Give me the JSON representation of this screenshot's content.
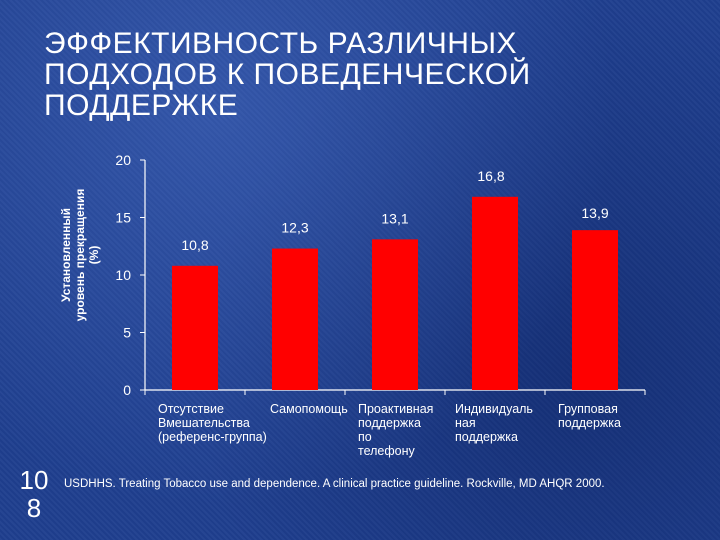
{
  "title": "ЭФФЕКТИВНОСТЬ РАЗЛИЧНЫХ\nПОДХОДОВ К ПОВЕДЕНЧЕСКОЙ\nПОДДЕРЖКЕ",
  "page_number": "108",
  "source": "USDHHS. Treating Tobacco use and dependence. A clinical practice guideline. Rockville, MD AHQR 2000.",
  "colors": {
    "bar": "#ff0000",
    "axis": "#ffffff",
    "text": "#ffffff",
    "background": "#1f3f8f"
  },
  "chart_data": {
    "type": "bar",
    "title": "",
    "xlabel": "",
    "ylabel": "Установленный\nуровень прекращения\n(%)",
    "categories": [
      "Отсутствие\nВмешательства\n(референс-группа)",
      "Самопомощь",
      "Проактивная\nподдержка\nпо\nтелефону",
      "Индивидуаль\nная\nподдержка",
      "Групповая\nподдержка"
    ],
    "values": [
      10.8,
      12.3,
      13.1,
      16.8,
      13.9
    ],
    "value_labels": [
      "10,8",
      "12,3",
      "13,1",
      "16,8",
      "13,9"
    ],
    "ylim": [
      0,
      20
    ],
    "yticks": [
      "0",
      "5",
      "10",
      "15",
      "20"
    ],
    "grid": false,
    "legend": "none"
  }
}
